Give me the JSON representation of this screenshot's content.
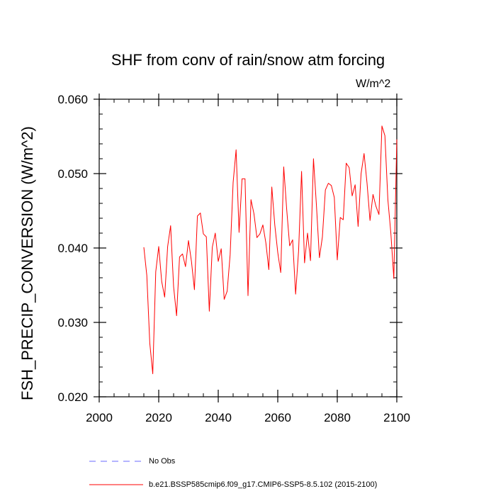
{
  "chart_data": {
    "type": "line",
    "title": "SHF from conv of rain/snow atm forcing",
    "units_label": "W/m^2",
    "xlabel": "",
    "ylabel": "FSH_PRECIP_CONVERSION  (W/m^2)",
    "xlim": [
      2000,
      2100
    ],
    "ylim": [
      0.02,
      0.06
    ],
    "x_ticks": [
      2000,
      2020,
      2040,
      2060,
      2080,
      2100
    ],
    "x_tick_labels": [
      "2000",
      "2020",
      "2040",
      "2060",
      "2080",
      "2100"
    ],
    "y_ticks": [
      0.02,
      0.03,
      0.04,
      0.05,
      0.06
    ],
    "y_tick_labels": [
      "0.020",
      "0.030",
      "0.040",
      "0.050",
      "0.060"
    ],
    "legend": [
      {
        "name": "No Obs",
        "color": "#6a6aff",
        "dashed": true
      },
      {
        "name": "b.e21.BSSP585cmip6.f09_g17.CMIP6-SSP5-8.5.102 (2015-2100)",
        "color": "#ff0000",
        "dashed": false
      }
    ],
    "series": [
      {
        "name": "b.e21.BSSP585cmip6.f09_g17.CMIP6-SSP5-8.5.102 (2015-2100)",
        "color": "#ff0000",
        "x": [
          2015,
          2016,
          2017,
          2018,
          2019,
          2020,
          2021,
          2022,
          2023,
          2024,
          2025,
          2026,
          2027,
          2028,
          2029,
          2030,
          2031,
          2032,
          2033,
          2034,
          2035,
          2036,
          2037,
          2038,
          2039,
          2040,
          2041,
          2042,
          2043,
          2044,
          2045,
          2046,
          2047,
          2048,
          2049,
          2050,
          2051,
          2052,
          2053,
          2054,
          2055,
          2056,
          2057,
          2058,
          2059,
          2060,
          2061,
          2062,
          2063,
          2064,
          2065,
          2066,
          2067,
          2068,
          2069,
          2070,
          2071,
          2072,
          2073,
          2074,
          2075,
          2076,
          2077,
          2078,
          2079,
          2080,
          2081,
          2082,
          2083,
          2084,
          2085,
          2086,
          2087,
          2088,
          2089,
          2090,
          2091,
          2092,
          2093,
          2094,
          2095,
          2096,
          2097,
          2098,
          2099,
          2100
        ],
        "values": [
          0.0401,
          0.0363,
          0.0272,
          0.0231,
          0.0368,
          0.0402,
          0.0355,
          0.0334,
          0.0402,
          0.043,
          0.0348,
          0.0309,
          0.0388,
          0.0392,
          0.0375,
          0.041,
          0.0382,
          0.0344,
          0.0443,
          0.0447,
          0.0419,
          0.0415,
          0.0315,
          0.0401,
          0.042,
          0.0382,
          0.0399,
          0.0331,
          0.0342,
          0.0391,
          0.0488,
          0.0532,
          0.0421,
          0.0493,
          0.0493,
          0.0336,
          0.0465,
          0.0446,
          0.0414,
          0.0419,
          0.0431,
          0.0407,
          0.0371,
          0.0482,
          0.0431,
          0.0394,
          0.0367,
          0.0509,
          0.0452,
          0.0403,
          0.0411,
          0.0338,
          0.0396,
          0.0503,
          0.038,
          0.042,
          0.0383,
          0.052,
          0.0457,
          0.0387,
          0.0415,
          0.0478,
          0.0487,
          0.0484,
          0.0468,
          0.0384,
          0.0441,
          0.0438,
          0.0514,
          0.0508,
          0.047,
          0.0485,
          0.0429,
          0.05,
          0.0527,
          0.0487,
          0.0437,
          0.0472,
          0.0456,
          0.0445,
          0.0564,
          0.0551,
          0.0465,
          0.042,
          0.0359,
          0.0546
        ]
      }
    ]
  }
}
